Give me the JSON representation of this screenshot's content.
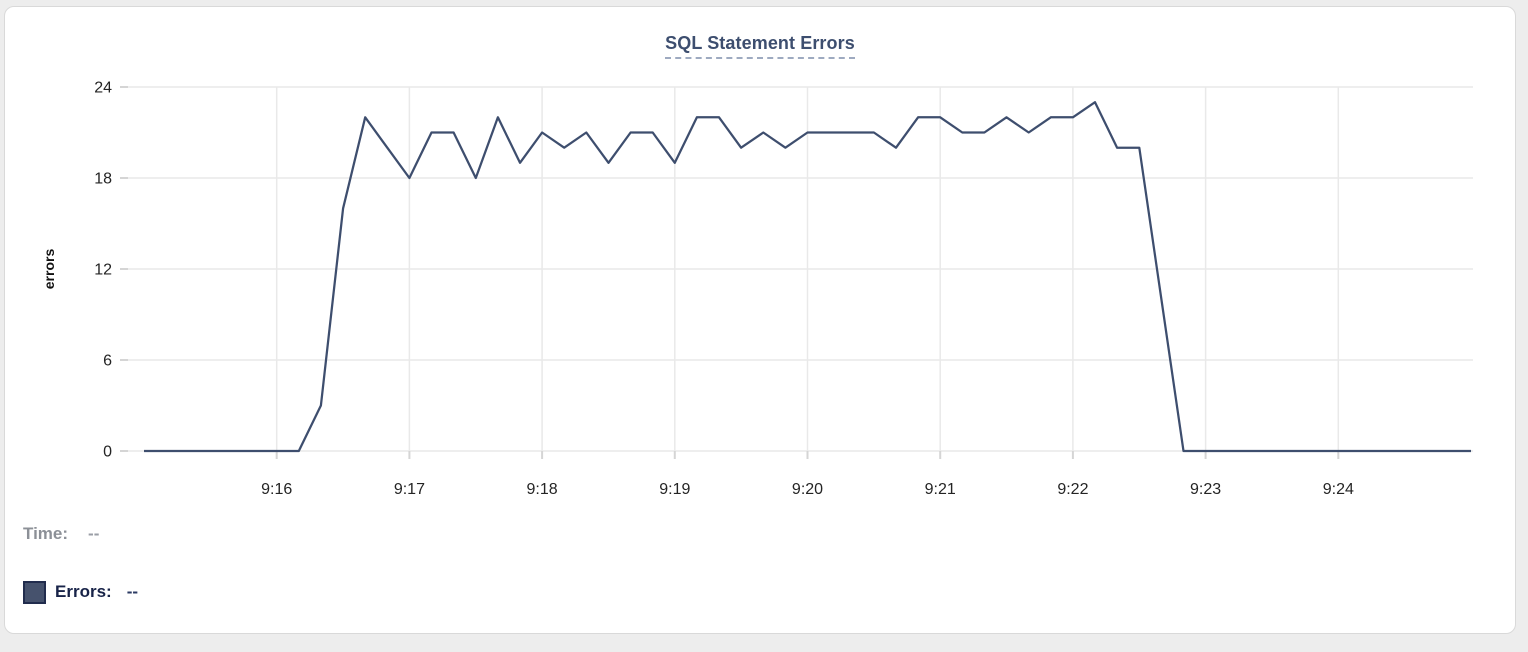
{
  "chart_data": {
    "type": "line",
    "title": "SQL Statement Errors",
    "xlabel": "",
    "ylabel": "errors",
    "ylim": [
      0,
      24
    ],
    "y_ticks": [
      0,
      6,
      12,
      18,
      24
    ],
    "x_tick_labels": [
      "9:16",
      "9:17",
      "9:18",
      "9:19",
      "9:20",
      "9:21",
      "9:22",
      "9:23",
      "9:24"
    ],
    "x_range": [
      "9:15:00",
      "9:25:00"
    ],
    "interval_seconds": 10,
    "grid": true,
    "legend_position": "below-as-readout",
    "series": [
      {
        "name": "Errors",
        "color": "#3e4e6e",
        "times": [
          "9:15:00",
          "9:15:10",
          "9:15:20",
          "9:15:30",
          "9:15:40",
          "9:15:50",
          "9:16:00",
          "9:16:10",
          "9:16:20",
          "9:16:30",
          "9:16:40",
          "9:16:50",
          "9:17:00",
          "9:17:10",
          "9:17:20",
          "9:17:30",
          "9:17:40",
          "9:17:50",
          "9:18:00",
          "9:18:10",
          "9:18:20",
          "9:18:30",
          "9:18:40",
          "9:18:50",
          "9:19:00",
          "9:19:10",
          "9:19:20",
          "9:19:30",
          "9:19:40",
          "9:19:50",
          "9:20:00",
          "9:20:10",
          "9:20:20",
          "9:20:30",
          "9:20:40",
          "9:20:50",
          "9:21:00",
          "9:21:10",
          "9:21:20",
          "9:21:30",
          "9:21:40",
          "9:21:50",
          "9:22:00",
          "9:22:10",
          "9:22:20",
          "9:22:30",
          "9:22:40",
          "9:22:50",
          "9:23:00",
          "9:23:10",
          "9:23:20",
          "9:23:30",
          "9:23:40",
          "9:23:50",
          "9:24:00",
          "9:24:10",
          "9:24:20",
          "9:24:30",
          "9:24:40",
          "9:24:50",
          "9:25:00"
        ],
        "values": [
          0,
          0,
          0,
          0,
          0,
          0,
          0,
          0,
          3,
          16,
          22,
          20,
          18,
          21,
          21,
          18,
          22,
          19,
          21,
          20,
          21,
          19,
          21,
          21,
          19,
          22,
          22,
          20,
          21,
          20,
          21,
          21,
          21,
          21,
          20,
          22,
          22,
          21,
          21,
          22,
          21,
          22,
          22,
          23,
          20,
          20,
          10,
          0,
          0,
          0,
          0,
          0,
          0,
          0,
          0,
          0,
          0,
          0,
          0,
          0,
          0
        ]
      }
    ]
  },
  "readout": {
    "time_label": "Time:",
    "time_value": "--",
    "errors_label": "Errors:",
    "errors_value": "--"
  },
  "colors": {
    "line": "#3e4e6e",
    "grid": "#e9e9e9",
    "tick_stub": "#d5d5d5",
    "axis_text": "#242424",
    "title": "#3d4e6f",
    "swatch_fill": "#46526d",
    "swatch_border": "#212c4d"
  }
}
